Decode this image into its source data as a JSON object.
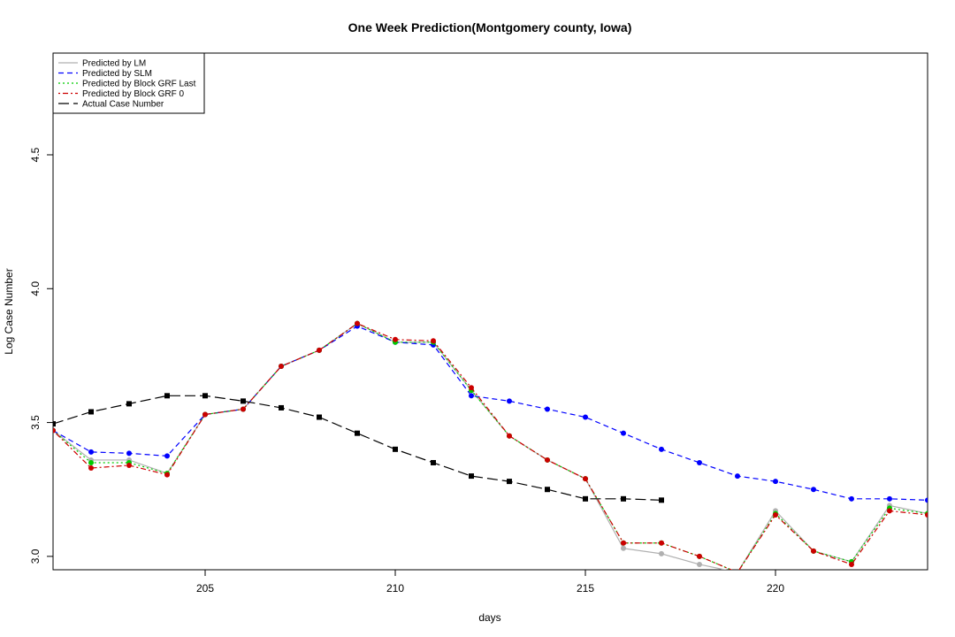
{
  "chart_data": {
    "type": "line",
    "title": "One Week Prediction(Montgomery county, Iowa)",
    "xlabel": "days",
    "ylabel": "Log Case Number",
    "xlim": [
      201,
      224
    ],
    "ylim": [
      2.95,
      4.88
    ],
    "xticks": [
      205,
      210,
      215,
      220
    ],
    "yticks": [
      3.0,
      3.5,
      4.0,
      4.5
    ],
    "xtick_labels": [
      "205",
      "210",
      "215",
      "220"
    ],
    "ytick_labels": [
      "3.0",
      "3.5",
      "4.0",
      "4.5"
    ],
    "grid": false,
    "legend_position": "top-left",
    "series": [
      {
        "name": "Predicted by LM",
        "color": "#b0b0b0",
        "dash": "solid",
        "marker": "circle",
        "x": [
          201,
          202,
          203,
          204,
          205,
          206,
          207,
          208,
          209,
          210,
          211,
          212,
          213,
          214,
          215,
          216,
          217,
          218,
          219,
          220,
          221,
          222,
          223,
          224
        ],
        "y": [
          3.47,
          3.36,
          3.36,
          3.31,
          3.53,
          3.55,
          3.71,
          3.77,
          3.87,
          3.8,
          3.8,
          3.62,
          3.45,
          3.36,
          3.29,
          3.03,
          3.01,
          2.97,
          2.94,
          3.17,
          3.02,
          2.98,
          3.19,
          3.16
        ]
      },
      {
        "name": "Predicted by SLM",
        "color": "#0000ff",
        "dash": "dashed",
        "marker": "circle",
        "x": [
          201,
          202,
          203,
          204,
          205,
          206,
          207,
          208,
          209,
          210,
          211,
          212,
          213,
          214,
          215,
          216,
          217,
          218,
          219,
          220,
          221,
          222,
          223,
          224
        ],
        "y": [
          3.47,
          3.39,
          3.385,
          3.375,
          3.53,
          3.55,
          3.71,
          3.77,
          3.86,
          3.8,
          3.79,
          3.6,
          3.58,
          3.55,
          3.52,
          3.46,
          3.4,
          3.35,
          3.3,
          3.28,
          3.25,
          3.215,
          3.215,
          3.21
        ]
      },
      {
        "name": "Predicted by Block GRF Last",
        "color": "#00cc00",
        "dash": "dotted",
        "marker": "circle",
        "x": [
          201,
          202,
          203,
          204,
          205,
          206,
          207,
          208,
          209,
          210,
          211,
          212,
          213,
          214,
          215,
          216,
          217,
          218,
          219,
          220,
          221,
          222,
          223,
          224
        ],
        "y": [
          3.47,
          3.35,
          3.35,
          3.31,
          3.53,
          3.55,
          3.71,
          3.77,
          3.87,
          3.8,
          3.8,
          3.62,
          3.45,
          3.36,
          3.29,
          3.05,
          3.05,
          3.0,
          2.94,
          3.16,
          3.02,
          2.98,
          3.18,
          3.16
        ]
      },
      {
        "name": "Predicted by Block GRF 0",
        "color": "#cc0000",
        "dash": "dotdash",
        "marker": "circle",
        "x": [
          201,
          202,
          203,
          204,
          205,
          206,
          207,
          208,
          209,
          210,
          211,
          212,
          213,
          214,
          215,
          216,
          217,
          218,
          219,
          220,
          221,
          222,
          223,
          224
        ],
        "y": [
          3.47,
          3.33,
          3.34,
          3.305,
          3.53,
          3.55,
          3.71,
          3.77,
          3.87,
          3.81,
          3.805,
          3.63,
          3.45,
          3.36,
          3.29,
          3.05,
          3.05,
          3.0,
          2.94,
          3.155,
          3.02,
          2.97,
          3.17,
          3.155
        ]
      },
      {
        "name": "Actual Case Number",
        "color": "#000000",
        "dash": "longdash",
        "marker": "square",
        "x": [
          201,
          202,
          203,
          204,
          205,
          206,
          207,
          208,
          209,
          210,
          211,
          212,
          213,
          214,
          215,
          216,
          217
        ],
        "y": [
          3.495,
          3.54,
          3.57,
          3.6,
          3.6,
          3.58,
          3.555,
          3.52,
          3.46,
          3.4,
          3.35,
          3.3,
          3.28,
          3.25,
          3.215,
          3.215,
          3.21
        ]
      }
    ]
  }
}
